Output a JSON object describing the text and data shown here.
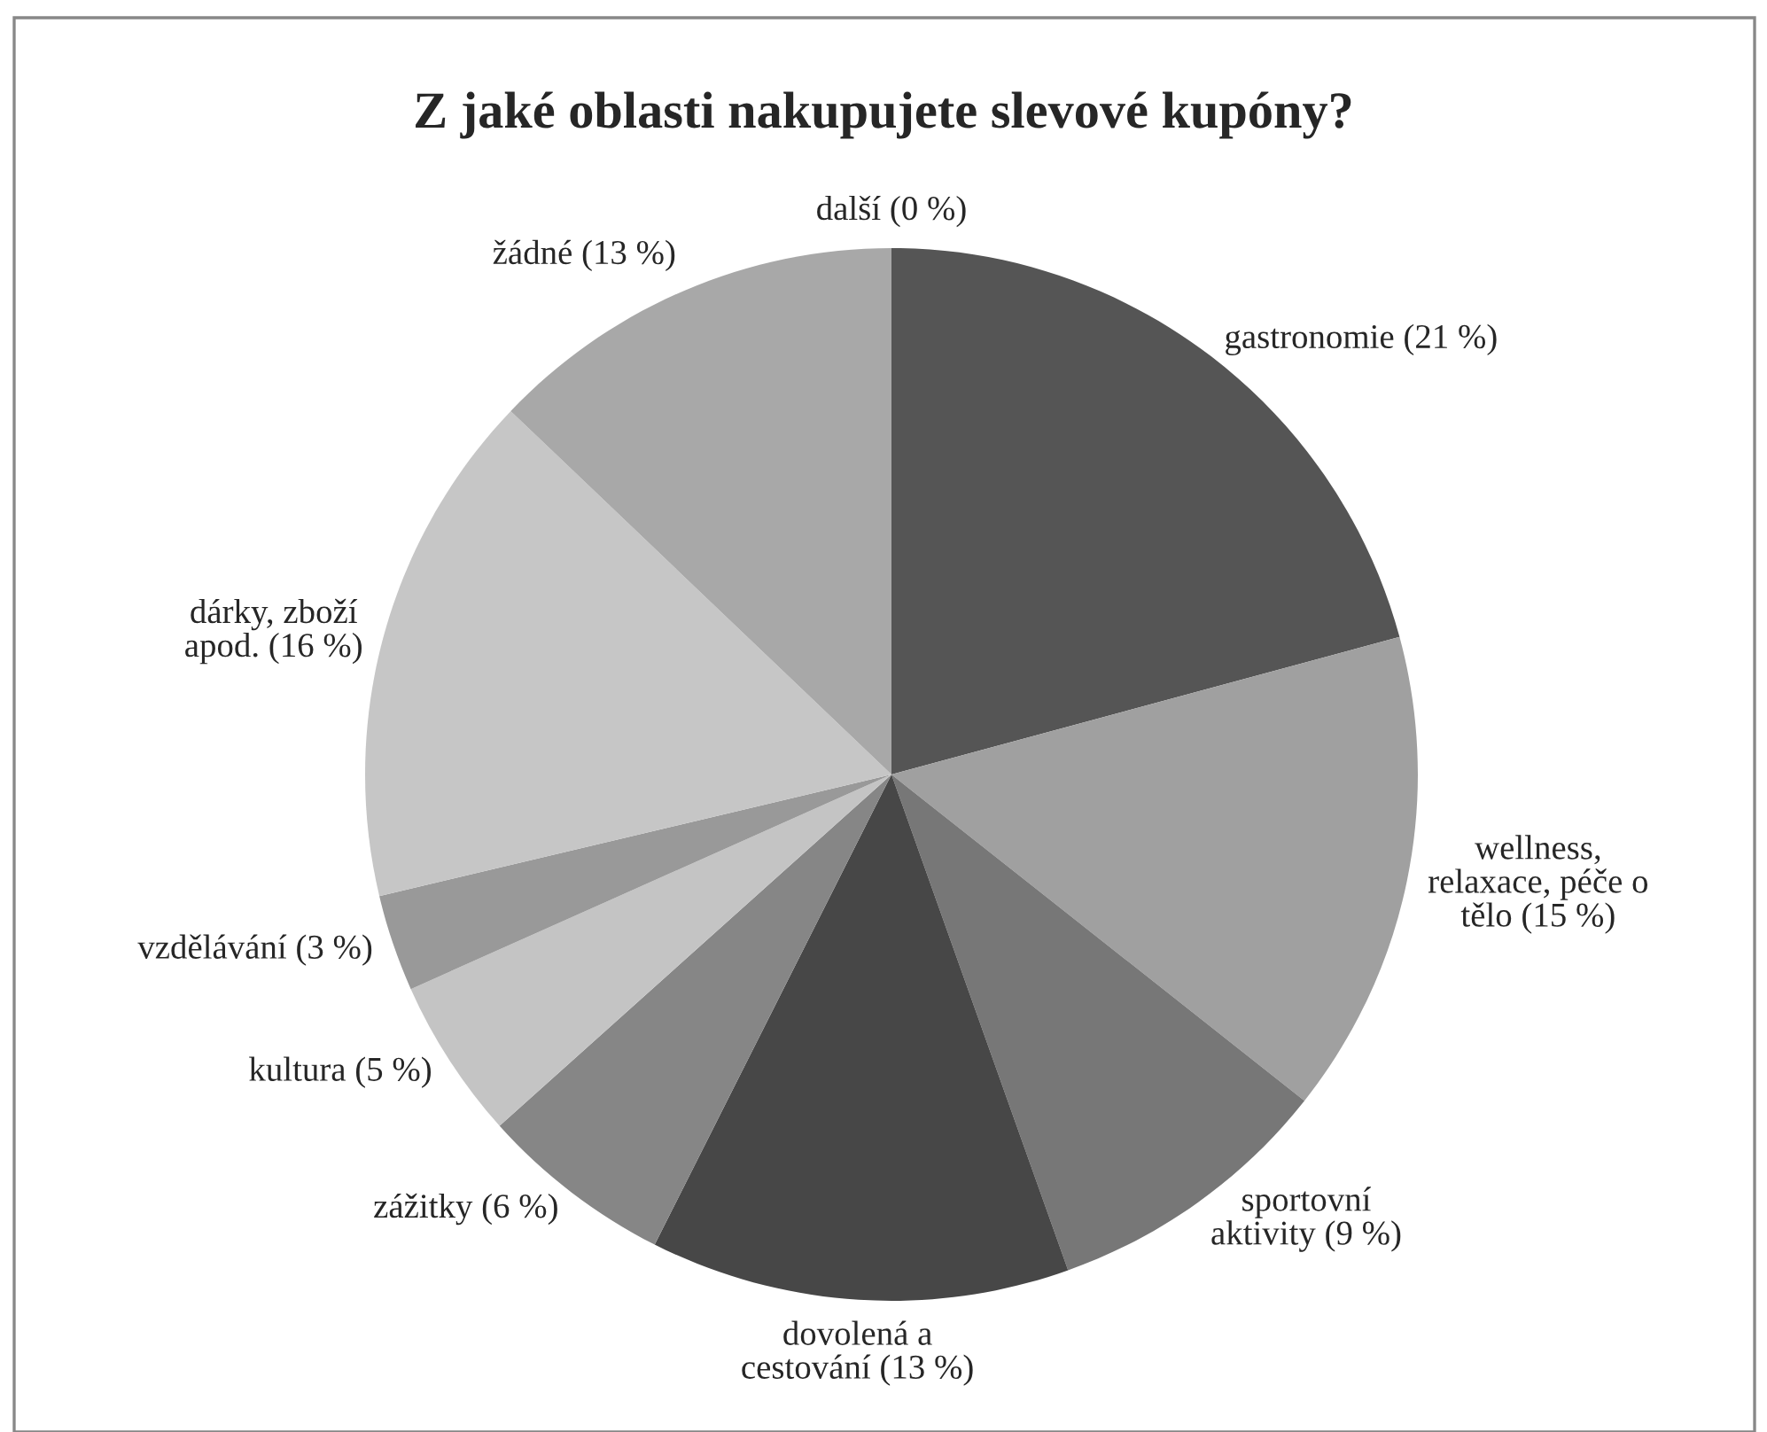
{
  "chart_data": {
    "type": "pie",
    "title": "Z jaké oblasti nakupujete slevové kupóny?",
    "categories": [
      "gastronomie",
      "wellness,\nrelaxace, péče o\ntělo",
      "sportovní\naktivity",
      "dovolená a\ncestování",
      "zážitky",
      "kultura",
      "vzdělávání",
      "dárky, zboží\napod.",
      "žádné",
      "další"
    ],
    "values": [
      21,
      15,
      9,
      13,
      6,
      5,
      3,
      16,
      13,
      0
    ],
    "colors": [
      "#555555",
      "#a0a0a0",
      "#777777",
      "#474747",
      "#868686",
      "#c4c4c4",
      "#999999",
      "#c6c6c6",
      "#a8a8a8",
      "#999999"
    ],
    "value_labels": [
      "(21 %)",
      "(15 %)",
      "(9 %)",
      "(13 %)",
      "(6 %)",
      "(5 %)",
      "(3 %)",
      "(16 %)",
      "(13 %)",
      "(0 %)"
    ],
    "legend": false
  }
}
